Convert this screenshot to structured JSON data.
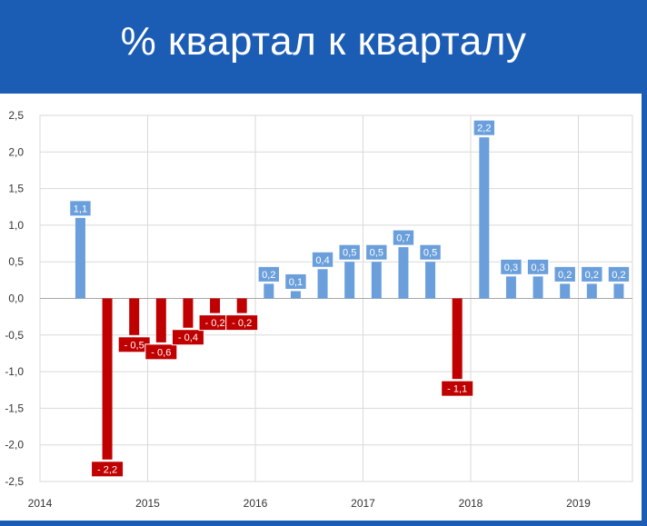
{
  "title": "% квартал к кварталу",
  "colors": {
    "frame": "#1b5cb4",
    "positive": "#6a9fdc",
    "negative": "#c00000",
    "label_text": "#ffffff",
    "grid": "#d9d9d9"
  },
  "chart_data": {
    "type": "bar",
    "title": "% квартал к кварталу",
    "xlabel": "",
    "ylabel": "",
    "ylim": [
      -2.5,
      2.5
    ],
    "yticks": [
      2.5,
      2.0,
      1.5,
      1.0,
      0.5,
      0.0,
      -0.5,
      -1.0,
      -1.5,
      -2.0,
      -2.5
    ],
    "ytick_labels": [
      "2,5",
      "2,0",
      "1,5",
      "1,0",
      "0,5",
      "0,0",
      "-0,5",
      "-1,0",
      "-1,5",
      "-2,0",
      "-2,5"
    ],
    "years": [
      "2014",
      "2015",
      "2016",
      "2017",
      "2018",
      "2019"
    ],
    "grid": true,
    "legend": "none",
    "values": [
      1.1,
      -2.2,
      -0.5,
      -0.6,
      -0.4,
      -0.2,
      -0.2,
      0.2,
      0.1,
      0.4,
      0.5,
      0.5,
      0.7,
      0.5,
      -1.1,
      2.2,
      0.3,
      0.3,
      0.2,
      0.2,
      0.2
    ],
    "data_labels": [
      "1,1",
      "- 2,2",
      "- 0,5",
      "- 0,6",
      "- 0,4",
      "- 0,2",
      "- 0,2",
      "0,2",
      "0,1",
      "0,4",
      "0,5",
      "0,5",
      "0,7",
      "0,5",
      "- 1,1",
      "2,2",
      "0,3",
      "0,3",
      "0,2",
      "0,2",
      "0,2"
    ]
  }
}
